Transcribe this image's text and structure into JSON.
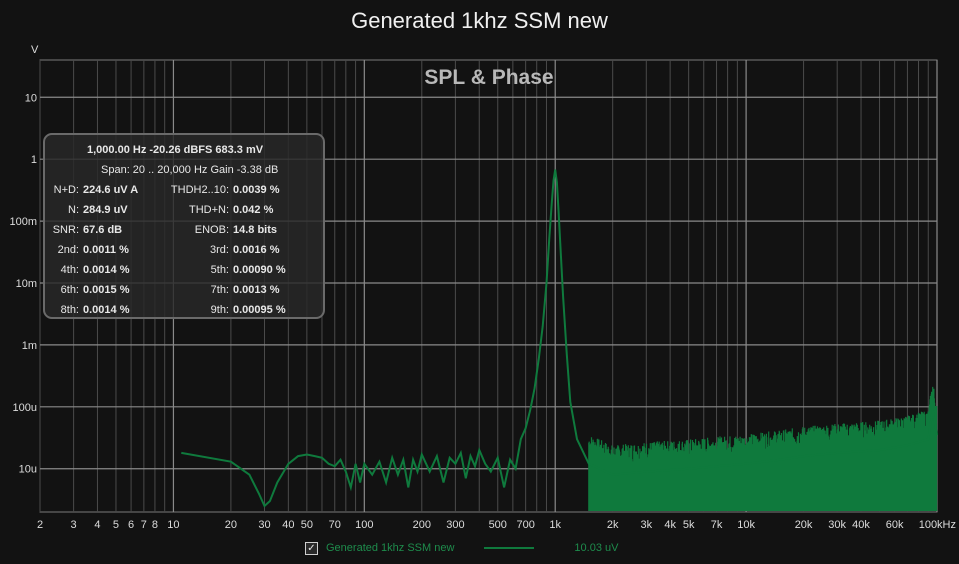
{
  "header": {
    "title": "Generated 1khz SSM new"
  },
  "chart_data": {
    "type": "line",
    "title": "SPL & Phase",
    "ylabel": "V",
    "x_scale": "log",
    "y_scale": "log",
    "xlim": [
      2,
      100000
    ],
    "ylim": [
      2e-06,
      40
    ],
    "x_tick_labels": [
      {
        "v": 2,
        "t": "2"
      },
      {
        "v": 3,
        "t": "3"
      },
      {
        "v": 4,
        "t": "4"
      },
      {
        "v": 5,
        "t": "5"
      },
      {
        "v": 6,
        "t": "6"
      },
      {
        "v": 7,
        "t": "7"
      },
      {
        "v": 8,
        "t": "8"
      },
      {
        "v": 10,
        "t": "10"
      },
      {
        "v": 20,
        "t": "20"
      },
      {
        "v": 30,
        "t": "30"
      },
      {
        "v": 40,
        "t": "40"
      },
      {
        "v": 50,
        "t": "50"
      },
      {
        "v": 70,
        "t": "70"
      },
      {
        "v": 100,
        "t": "100"
      },
      {
        "v": 200,
        "t": "200"
      },
      {
        "v": 300,
        "t": "300"
      },
      {
        "v": 500,
        "t": "500"
      },
      {
        "v": 700,
        "t": "700"
      },
      {
        "v": 1000,
        "t": "1k"
      },
      {
        "v": 2000,
        "t": "2k"
      },
      {
        "v": 3000,
        "t": "3k"
      },
      {
        "v": 4000,
        "t": "4k"
      },
      {
        "v": 5000,
        "t": "5k"
      },
      {
        "v": 7000,
        "t": "7k"
      },
      {
        "v": 10000,
        "t": "10k"
      },
      {
        "v": 20000,
        "t": "20k"
      },
      {
        "v": 30000,
        "t": "30k"
      },
      {
        "v": 40000,
        "t": "40k"
      },
      {
        "v": 60000,
        "t": "60k"
      },
      {
        "v": 100000,
        "t": "100kHz"
      }
    ],
    "y_tick_labels": [
      {
        "v": 10,
        "t": "10"
      },
      {
        "v": 1,
        "t": "1"
      },
      {
        "v": 0.1,
        "t": "100m"
      },
      {
        "v": 0.01,
        "t": "10m"
      },
      {
        "v": 0.001,
        "t": "1m"
      },
      {
        "v": 0.0001,
        "t": "100u"
      },
      {
        "v": 1e-05,
        "t": "10u"
      }
    ],
    "grid": true,
    "series": [
      {
        "name": "Generated 1khz  SSM new",
        "color": "#0f7a3d",
        "x": [
          11,
          20,
          25,
          28,
          30,
          32,
          35,
          40,
          45,
          50,
          55,
          60,
          65,
          70,
          75,
          80,
          85,
          90,
          95,
          100,
          110,
          120,
          130,
          140,
          150,
          160,
          170,
          180,
          190,
          200,
          220,
          240,
          260,
          280,
          300,
          320,
          340,
          360,
          380,
          400,
          430,
          460,
          500,
          540,
          580,
          620,
          660,
          700,
          740,
          780,
          820,
          860,
          900,
          930,
          960,
          980,
          1000,
          1020,
          1040,
          1070,
          1100,
          1150,
          1200,
          1300,
          1500,
          2000,
          3000,
          5000,
          7000,
          10000,
          15000,
          20000,
          30000,
          50000,
          70000,
          90000,
          95000,
          100000
        ],
        "y": [
          1.8e-05,
          1.3e-05,
          8e-06,
          4e-06,
          2.5e-06,
          3e-06,
          6e-06,
          1.2e-05,
          1.6e-05,
          1.7e-05,
          1.6e-05,
          1.5e-05,
          1.2e-05,
          1.1e-05,
          1.4e-05,
          9e-06,
          5e-06,
          1.2e-05,
          6e-06,
          1.2e-05,
          8e-06,
          1.3e-05,
          6e-06,
          1.5e-05,
          8e-06,
          1.4e-05,
          5e-06,
          1.4e-05,
          9e-06,
          1.7e-05,
          9e-06,
          1.6e-05,
          6e-06,
          1.5e-05,
          1.2e-05,
          1.8e-05,
          7e-06,
          1.6e-05,
          1.1e-05,
          2e-05,
          1.2e-05,
          9e-06,
          1.5e-05,
          5e-06,
          1.4e-05,
          1e-05,
          3e-05,
          4.5e-05,
          9e-05,
          0.0002,
          0.0006,
          0.002,
          0.01,
          0.05,
          0.2,
          0.45,
          0.68,
          0.42,
          0.15,
          0.03,
          0.006,
          0.0007,
          0.00012,
          3e-05,
          1.2e-05,
          8e-06,
          9e-06,
          1e-05,
          1.1e-05,
          1.2e-05,
          1.4e-05,
          1.6e-05,
          1.8e-05,
          2e-05,
          2.4e-05,
          3e-05,
          9e-05,
          3.5e-05
        ]
      }
    ]
  },
  "info_box": {
    "line1": "1,000.00 Hz  -20.26 dBFS  683.3 mV",
    "line2": "Span: 20 .. 20,000 Hz   Gain -3.38 dB",
    "rows": [
      {
        "l1": "N+D:",
        "v1": "224.6 uV A",
        "l2": "THDH2..10:",
        "v2": "0.0039 %"
      },
      {
        "l1": "N:",
        "v1": "284.9 uV",
        "l2": "THD+N:",
        "v2": "0.042 %"
      },
      {
        "l1": "SNR:",
        "v1": "67.6 dB",
        "l2": "ENOB:",
        "v2": "14.8 bits"
      },
      {
        "l1": "2nd:",
        "v1": "0.0011 %",
        "l2": "3rd:",
        "v2": "0.0016 %"
      },
      {
        "l1": "4th:",
        "v1": "0.0014 %",
        "l2": "5th:",
        "v2": "0.00090 %"
      },
      {
        "l1": "6th:",
        "v1": "0.0015 %",
        "l2": "7th:",
        "v2": "0.0013 %"
      },
      {
        "l1": "8th:",
        "v1": "0.0014 %",
        "l2": "9th:",
        "v2": "0.00095 %"
      }
    ]
  },
  "legend": {
    "checked": true,
    "check_glyph": "✓",
    "series_name": "Generated 1khz  SSM new",
    "value": "10.03 uV"
  }
}
